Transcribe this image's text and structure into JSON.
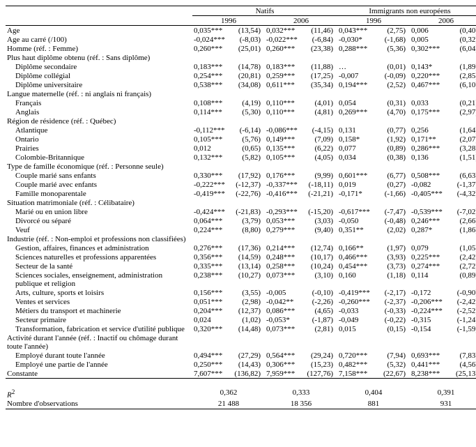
{
  "header": {
    "group1": "Natifs",
    "group2": "Immigrants non européens",
    "year1": "1996",
    "year2": "2006"
  },
  "rows": [
    {
      "label": "Age",
      "indent": false,
      "c": [
        "0,035***",
        "(13,54)",
        "0,032***",
        "(11,46)",
        "0,043***",
        "(2,75)",
        "0,006",
        "(0,40)"
      ]
    },
    {
      "label": "Age au carré (/100)",
      "indent": false,
      "c": [
        "-0,024***",
        "(-8,03)",
        "-0,022***",
        "(-6,84)",
        "-0,030*",
        "(-1,68)",
        "0,005",
        "(0,32)"
      ]
    },
    {
      "label": "Homme (réf. : Femme)",
      "indent": false,
      "c": [
        "0,260***",
        "(25,01)",
        "0,260***",
        "(23,38)",
        "0,288***",
        "(5,36)",
        "0,302***",
        "(6,04)"
      ]
    },
    {
      "label": "Plus haut diplôme obtenu (réf. : Sans diplôme)",
      "indent": false,
      "c": [
        "",
        "",
        "",
        "",
        "",
        "",
        "",
        ""
      ]
    },
    {
      "label": "Diplôme secondaire",
      "indent": true,
      "c": [
        "0,183***",
        "(14,78)",
        "0,183***",
        "(11,88)",
        "…",
        "(0,01)",
        "0,143*",
        "(1,89)"
      ]
    },
    {
      "label": "Diplôme collégial",
      "indent": true,
      "c": [
        "0,254***",
        "(20,81)",
        "0,259***",
        "(17,25)",
        "-0,007",
        "(-0,09)",
        "0,220***",
        "(2,85)"
      ]
    },
    {
      "label": "Diplôme universitaire",
      "indent": true,
      "c": [
        "0,538***",
        "(34,08)",
        "0,611***",
        "(35,34)",
        "0,194***",
        "(2,52)",
        "0,467***",
        "(6,10)"
      ]
    },
    {
      "label": "Langue maternelle (réf. : ni anglais ni français)",
      "indent": false,
      "c": [
        "",
        "",
        "",
        "",
        "",
        "",
        "",
        ""
      ]
    },
    {
      "label": "Français",
      "indent": true,
      "c": [
        "0,108***",
        "(4,19)",
        "0,110***",
        "(4,01)",
        "0,054",
        "(0,31)",
        "0,033",
        "(0,21)"
      ]
    },
    {
      "label": "Anglais",
      "indent": true,
      "c": [
        "0,114***",
        "(5,30)",
        "0,110***",
        "(4,81)",
        "0,269***",
        "(4,70)",
        "0,175***",
        "(2,97)"
      ]
    },
    {
      "label": "Région de résidence (réf. : Québec)",
      "indent": false,
      "c": [
        "",
        "",
        "",
        "",
        "",
        "",
        "",
        ""
      ]
    },
    {
      "label": "Atlantique",
      "indent": true,
      "c": [
        "-0,112***",
        "(-6,14)",
        "-0,086***",
        "(-4,15)",
        "0,131",
        "(0,77)",
        "0,256",
        "(1,64)"
      ]
    },
    {
      "label": "Ontario",
      "indent": true,
      "c": [
        "0,105***",
        "(5,76)",
        "0,149***",
        "(7,09)",
        "0,158*",
        "(1,92)",
        "0,171**",
        "(2,07)"
      ]
    },
    {
      "label": "Prairies",
      "indent": true,
      "c": [
        "0,012",
        "(0,65)",
        "0,135***",
        "(6,22)",
        "0,077",
        "(0,89)",
        "0,286***",
        "(3,28)"
      ]
    },
    {
      "label": "Colombie-Britannique",
      "indent": true,
      "c": [
        "0,132***",
        "(5,82)",
        "0,105***",
        "(4,05)",
        "0,034",
        "(0,38)",
        "0,136",
        "(1,51)"
      ]
    },
    {
      "label": "Type de famille économique (réf. : Personne seule)",
      "indent": false,
      "c": [
        "",
        "",
        "",
        "",
        "",
        "",
        "",
        ""
      ]
    },
    {
      "label": "Couple marié sans enfants",
      "indent": true,
      "c": [
        "0,330***",
        "(17,92)",
        "0,176***",
        "(9,99)",
        "0,601***",
        "(6,77)",
        "0,508***",
        "(6,63)"
      ]
    },
    {
      "label": "Couple marié avec enfants",
      "indent": true,
      "c": [
        "-0,222***",
        "(-12,37)",
        "-0,337***",
        "(-18,11)",
        "0,019",
        "(0,27)",
        "-0,082",
        "(-1,37)"
      ]
    },
    {
      "label": "Famille monoparentale",
      "indent": true,
      "c": [
        "-0,419***",
        "(-22,76)",
        "-0,416***",
        "(-21,21)",
        "-0,171*",
        "(-1,66)",
        "-0,405***",
        "(-4,32)"
      ]
    },
    {
      "label": "Situation matrimoniale (réf. : Célibataire)",
      "indent": false,
      "c": [
        "",
        "",
        "",
        "",
        "",
        "",
        "",
        ""
      ]
    },
    {
      "label": "Marié ou en union libre",
      "indent": true,
      "c": [
        "-0,424***",
        "(-21,83)",
        "-0,293***",
        "(-15,20)",
        "-0,617***",
        "(-7,47)",
        "-0,539***",
        "(-7,02)"
      ]
    },
    {
      "label": "Divorcé ou séparé",
      "indent": true,
      "c": [
        "0,064***",
        "(3,79)",
        "0,053***",
        "(3,03)",
        "-0,050",
        "(-0,48)",
        "0,246***",
        "(2,66)"
      ]
    },
    {
      "label": "Veuf",
      "indent": true,
      "c": [
        "0,224***",
        "(8,80)",
        "0,279***",
        "(9,40)",
        "0,351**",
        "(2,02)",
        "0,287*",
        "(1,86)"
      ]
    },
    {
      "label": "Industrie (réf. : Non-emploi et professions non classifiées)",
      "indent": false,
      "c": [
        "",
        "",
        "",
        "",
        "",
        "",
        "",
        ""
      ]
    },
    {
      "label": "Gestion, affaires, finances et administration",
      "indent": true,
      "c": [
        "0,276***",
        "(17,36)",
        "0,214***",
        "(12,74)",
        "0,166**",
        "(1,97)",
        "0,079",
        "(1,05)"
      ]
    },
    {
      "label": "Sciences naturelles et professions apparentées",
      "indent": true,
      "c": [
        "0,356***",
        "(14,59)",
        "0,248***",
        "(10,17)",
        "0,466***",
        "(3,93)",
        "0,225***",
        "(2,42)"
      ]
    },
    {
      "label": "Secteur de la santé",
      "indent": true,
      "c": [
        "0,335***",
        "(13,14)",
        "0,258***",
        "(10,24)",
        "0,454***",
        "(3,73)",
        "0,274***",
        "(2,72)"
      ]
    },
    {
      "label": "Sciences sociales, enseignement, administration publique et religion",
      "indent": true,
      "c": [
        "0,238***",
        "(10,27)",
        "0,073***",
        "(3,10)",
        "0,160",
        "(1,18)",
        "0,114",
        "(0,89)"
      ]
    },
    {
      "label": "Arts, culture, sports et loisirs",
      "indent": true,
      "c": [
        "0,156***",
        "(3,55)",
        "-0,005",
        "(-0,10)",
        "-0,419***",
        "(-2,17)",
        "-0,172",
        "(-0,90)"
      ]
    },
    {
      "label": "Ventes et services",
      "indent": true,
      "c": [
        "0,051***",
        "(2,98)",
        "-0,042**",
        "(-2,26)",
        "-0,260***",
        "(-2,37)",
        "-0,206***",
        "(-2,42)"
      ]
    },
    {
      "label": "Métiers du transport et machinerie",
      "indent": true,
      "c": [
        "0,204***",
        "(12,37)",
        "0,086***",
        "(4,65)",
        "-0,033",
        "(-0,33)",
        "-0,224***",
        "(-2,52)"
      ]
    },
    {
      "label": "Secteur primaire",
      "indent": true,
      "c": [
        "0,024",
        "(1,02)",
        "-0,053*",
        "(-1,87)",
        "-0,049",
        "(-0,22)",
        "-0,315",
        "(-1,24)"
      ]
    },
    {
      "label": "Transformation, fabrication et service d'utilité publique",
      "indent": true,
      "c": [
        "0,320***",
        "(14,48)",
        "0,073***",
        "(2,81)",
        "0,015",
        "(0,15)",
        "-0,154",
        "(-1,59)"
      ]
    },
    {
      "label": "Activité durant l'année (réf. : Inactif ou chômage durant toute l'année)",
      "indent": false,
      "c": [
        "",
        "",
        "",
        "",
        "",
        "",
        "",
        ""
      ]
    },
    {
      "label": "Employé durant toute l'année",
      "indent": true,
      "c": [
        "0,494***",
        "(27,29)",
        "0,564***",
        "(29,24)",
        "0,720***",
        "(7,94)",
        "0,693***",
        "(7,83)"
      ]
    },
    {
      "label": "Employé une partie de l'année",
      "indent": true,
      "c": [
        "0,250***",
        "(14,43)",
        "0,306***",
        "(15,23)",
        "0,482***",
        "(5,32)",
        "0,441***",
        "(4,56)"
      ]
    },
    {
      "label": "Constante",
      "indent": false,
      "c": [
        "7,607***",
        "(136,82)",
        "7,959***",
        "(127,76)",
        "7,158***",
        "(22,67)",
        "8,238***",
        "(25,13)"
      ]
    }
  ],
  "spacer": true,
  "r2": {
    "label": "R",
    "sup": "2",
    "c": [
      "0,362",
      "0,333",
      "0,404",
      "0,391"
    ]
  },
  "nobs": {
    "label": "Nombre d'observations",
    "c": [
      "21 488",
      "18 356",
      "881",
      "931"
    ]
  }
}
